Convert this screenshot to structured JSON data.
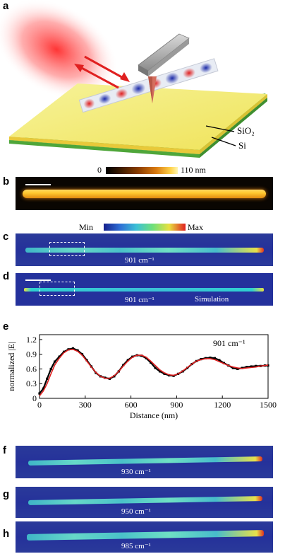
{
  "panels": {
    "a": "a",
    "b": "b",
    "c": "c",
    "d": "d",
    "e": "e",
    "f": "f",
    "g": "g",
    "h": "h"
  },
  "schematic": {
    "sio2_label": "SiO₂",
    "si_label": "Si",
    "colors": {
      "substrate_top": "#f3ee6e",
      "sio2_edge": "#f0d93a",
      "si_layer": "#4fa63a",
      "laser": "#ff3a3a",
      "tip": "#d87a6a"
    }
  },
  "height_colorbar": {
    "min_label": "0",
    "max_label": "110 nm"
  },
  "field_colorbar": {
    "min_label": "Min",
    "max_label": "Max"
  },
  "maps": {
    "c": {
      "label": "901 cm⁻¹"
    },
    "d": {
      "label": "901 cm⁻¹",
      "sublabel": "Simulation"
    },
    "f": {
      "label": "930 cm⁻¹"
    },
    "g": {
      "label": "950 cm⁻¹"
    },
    "h": {
      "label": "985 cm⁻¹"
    }
  },
  "chart_data": {
    "type": "line",
    "annotation": "901 cm⁻¹",
    "xlabel": "Distance (nm)",
    "ylabel": "normalized |E|",
    "xlim": [
      0,
      1500
    ],
    "ylim": [
      0,
      1.3
    ],
    "xticks": [
      0,
      300,
      600,
      900,
      1200,
      1500
    ],
    "yticks": [
      0,
      0.3,
      0.6,
      0.9,
      1.2
    ],
    "xtick_labels": [
      "0",
      "300",
      "600",
      "900",
      "1200",
      "1500"
    ],
    "ytick_labels": [
      "0",
      "0.3",
      "0.6",
      "0.9",
      "1.2"
    ],
    "series": [
      {
        "kind": "experiment",
        "color": "#000000",
        "x": [
          0,
          25,
          50,
          75,
          100,
          130,
          160,
          190,
          220,
          250,
          280,
          310,
          340,
          370,
          400,
          430,
          460,
          490,
          520,
          550,
          580,
          610,
          640,
          670,
          700,
          730,
          760,
          790,
          820,
          850,
          880,
          910,
          940,
          970,
          1000,
          1030,
          1060,
          1090,
          1120,
          1150,
          1180,
          1210,
          1240,
          1270,
          1300,
          1330,
          1360,
          1390,
          1420,
          1450,
          1480,
          1500
        ],
        "y": [
          0.1,
          0.2,
          0.4,
          0.6,
          0.75,
          0.85,
          0.95,
          1.0,
          1.02,
          0.98,
          0.9,
          0.78,
          0.65,
          0.52,
          0.45,
          0.42,
          0.4,
          0.45,
          0.55,
          0.68,
          0.78,
          0.85,
          0.88,
          0.87,
          0.82,
          0.73,
          0.62,
          0.55,
          0.5,
          0.47,
          0.46,
          0.5,
          0.55,
          0.62,
          0.7,
          0.76,
          0.8,
          0.82,
          0.83,
          0.82,
          0.78,
          0.72,
          0.67,
          0.62,
          0.6,
          0.62,
          0.64,
          0.65,
          0.66,
          0.66,
          0.67,
          0.67
        ]
      },
      {
        "kind": "fit",
        "color": "#e02020",
        "x": [
          0,
          25,
          50,
          75,
          100,
          130,
          160,
          190,
          220,
          250,
          280,
          310,
          340,
          370,
          400,
          430,
          460,
          490,
          520,
          550,
          580,
          610,
          640,
          670,
          700,
          730,
          760,
          790,
          820,
          850,
          880,
          910,
          940,
          970,
          1000,
          1030,
          1060,
          1090,
          1120,
          1150,
          1180,
          1210,
          1240,
          1270,
          1300,
          1330,
          1360,
          1390,
          1420,
          1450,
          1480,
          1500
        ],
        "y": [
          0.05,
          0.15,
          0.3,
          0.5,
          0.68,
          0.82,
          0.93,
          0.99,
          1.0,
          0.96,
          0.88,
          0.76,
          0.64,
          0.53,
          0.45,
          0.41,
          0.41,
          0.46,
          0.55,
          0.66,
          0.76,
          0.84,
          0.88,
          0.88,
          0.84,
          0.76,
          0.67,
          0.58,
          0.52,
          0.48,
          0.47,
          0.5,
          0.56,
          0.63,
          0.7,
          0.76,
          0.79,
          0.81,
          0.81,
          0.79,
          0.75,
          0.71,
          0.67,
          0.64,
          0.62,
          0.61,
          0.62,
          0.63,
          0.64,
          0.66,
          0.67,
          0.68
        ]
      }
    ]
  }
}
